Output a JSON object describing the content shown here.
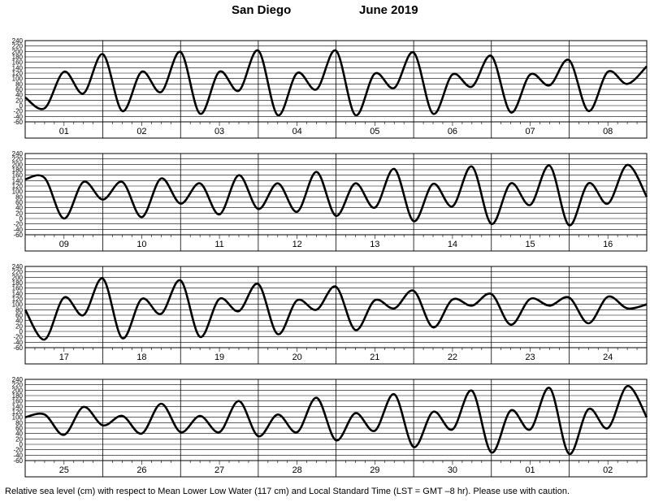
{
  "header": {
    "place": "San Diego",
    "month_year": "June   2019"
  },
  "footnote": "Relative sea level (cm) with respect to Mean Lower Low Water (117 cm) and Local Standard Time (LST = GMT –8 hr). Please use with caution.",
  "chart_data": [
    {
      "type": "line",
      "title": "San Diego June 2019",
      "ylabel": "",
      "ylim": [
        -60,
        240
      ],
      "yticks": [
        240,
        220,
        200,
        180,
        160,
        140,
        120,
        100,
        80,
        60,
        40,
        20,
        0,
        -20,
        -40,
        -60
      ],
      "x_unit": "days",
      "days": [
        "01",
        "02",
        "03",
        "04",
        "05",
        "06",
        "07",
        "08"
      ],
      "grid": true,
      "series": [
        {
          "values": [
            30,
            -10,
            125,
            45,
            190,
            -20,
            125,
            50,
            198,
            -30,
            125,
            55,
            203,
            -35,
            120,
            60,
            203,
            -35,
            118,
            65,
            196,
            -30,
            115,
            70,
            183,
            -25,
            115,
            75,
            168,
            -20,
            125,
            80,
            145
          ]
        }
      ]
    },
    {
      "type": "line",
      "title": "",
      "ylabel": "",
      "ylim": [
        -60,
        240
      ],
      "yticks": [
        240,
        220,
        200,
        180,
        160,
        140,
        120,
        100,
        80,
        60,
        40,
        20,
        0,
        -20,
        -40,
        -60
      ],
      "x_unit": "days",
      "days": [
        "09",
        "10",
        "11",
        "12",
        "13",
        "14",
        "15",
        "16"
      ],
      "grid": true,
      "series": [
        {
          "values": [
            145,
            150,
            0,
            135,
            70,
            135,
            5,
            148,
            55,
            130,
            15,
            160,
            35,
            130,
            25,
            172,
            10,
            130,
            40,
            183,
            -10,
            128,
            45,
            192,
            -20,
            130,
            50,
            195,
            -25,
            130,
            55,
            198,
            80
          ]
        }
      ]
    },
    {
      "type": "line",
      "title": "",
      "ylabel": "",
      "ylim": [
        -60,
        240
      ],
      "yticks": [
        240,
        220,
        200,
        180,
        160,
        140,
        120,
        100,
        80,
        60,
        40,
        20,
        0,
        -20,
        -40,
        -60
      ],
      "x_unit": "days",
      "days": [
        "17",
        "18",
        "19",
        "20",
        "21",
        "22",
        "23",
        "24"
      ],
      "grid": true,
      "series": [
        {
          "values": [
            80,
            -30,
            125,
            60,
            195,
            -25,
            120,
            65,
            188,
            -20,
            120,
            75,
            175,
            -10,
            115,
            80,
            165,
            5,
            115,
            85,
            150,
            15,
            118,
            95,
            138,
            25,
            120,
            95,
            125,
            30,
            128,
            85,
            100
          ]
        }
      ]
    },
    {
      "type": "line",
      "title": "",
      "ylabel": "",
      "ylim": [
        -60,
        240
      ],
      "yticks": [
        240,
        220,
        200,
        180,
        160,
        140,
        120,
        100,
        80,
        60,
        40,
        20,
        0,
        -20,
        -40,
        -60
      ],
      "x_unit": "days",
      "days": [
        "25",
        "26",
        "27",
        "28",
        "29",
        "30",
        "01",
        "02"
      ],
      "grid": true,
      "series": [
        {
          "values": [
            100,
            110,
            35,
            138,
            70,
            105,
            40,
            150,
            45,
            105,
            45,
            160,
            30,
            110,
            45,
            172,
            15,
            115,
            50,
            185,
            -10,
            120,
            55,
            198,
            -30,
            125,
            55,
            208,
            -35,
            130,
            60,
            215,
            100
          ]
        }
      ]
    }
  ]
}
